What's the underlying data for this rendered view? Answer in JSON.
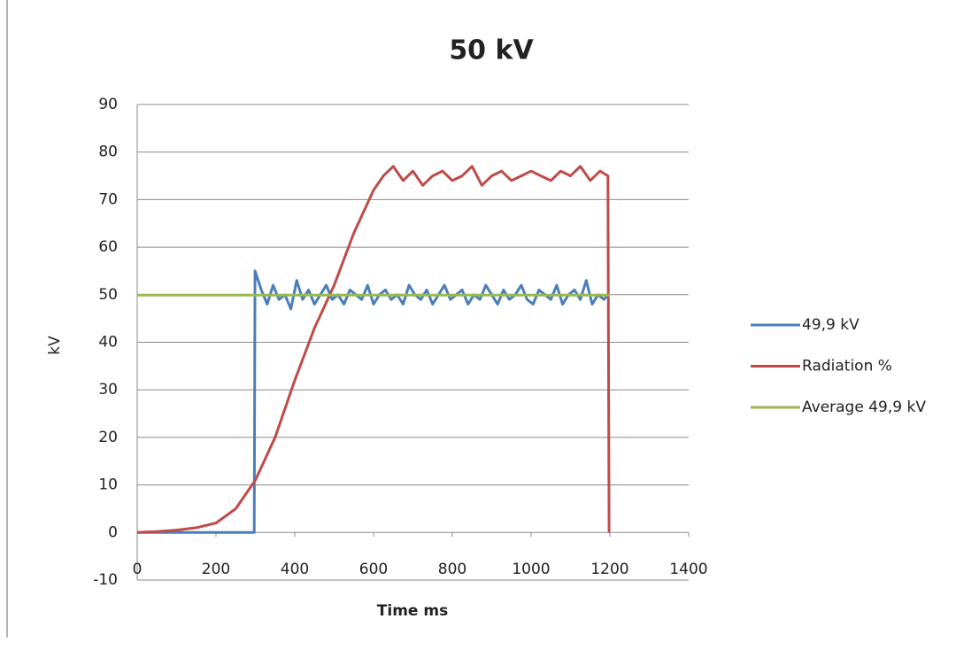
{
  "chart_data": {
    "type": "line",
    "title": "50 kV",
    "x_label": "Time ms",
    "y_label": "kV",
    "xlim": [
      0,
      1400
    ],
    "xticks": [
      0,
      200,
      400,
      600,
      800,
      1000,
      1200,
      1400
    ],
    "ylim": [
      -10,
      90
    ],
    "yticks": [
      -10,
      0,
      10,
      20,
      30,
      40,
      50,
      60,
      70,
      80,
      90
    ],
    "grid": true,
    "legend": "right",
    "series": [
      {
        "name": "49,9 kV",
        "color": "#4a7ebb",
        "x": [
          0,
          297,
          299,
          315,
          330,
          345,
          360,
          375,
          390,
          405,
          420,
          435,
          450,
          465,
          480,
          495,
          510,
          525,
          540,
          555,
          570,
          585,
          600,
          615,
          630,
          645,
          660,
          675,
          690,
          705,
          720,
          735,
          750,
          765,
          780,
          795,
          810,
          825,
          840,
          855,
          870,
          885,
          900,
          915,
          930,
          945,
          960,
          975,
          990,
          1005,
          1020,
          1035,
          1050,
          1065,
          1080,
          1095,
          1110,
          1125,
          1140,
          1155,
          1170,
          1185,
          1195
        ],
        "values": [
          0,
          0,
          55,
          51,
          48,
          52,
          49,
          50,
          47,
          53,
          49,
          51,
          48,
          50,
          52,
          49,
          50,
          48,
          51,
          50,
          49,
          52,
          48,
          50,
          51,
          49,
          50,
          48,
          52,
          50,
          49,
          51,
          48,
          50,
          52,
          49,
          50,
          51,
          48,
          50,
          49,
          52,
          50,
          48,
          51,
          49,
          50,
          52,
          49,
          48,
          51,
          50,
          49,
          52,
          48,
          50,
          51,
          49,
          53,
          48,
          50,
          49,
          50
        ]
      },
      {
        "name": "Radiation %",
        "color": "#be4b48",
        "x": [
          0,
          50,
          100,
          150,
          200,
          250,
          300,
          350,
          400,
          450,
          500,
          550,
          600,
          625,
          650,
          675,
          700,
          725,
          750,
          775,
          800,
          825,
          850,
          875,
          900,
          925,
          950,
          975,
          1000,
          1025,
          1050,
          1075,
          1100,
          1125,
          1150,
          1175,
          1195,
          1198
        ],
        "values": [
          0,
          0.2,
          0.5,
          1,
          2,
          5,
          11,
          20,
          32,
          43,
          52,
          63,
          72,
          75,
          77,
          74,
          76,
          73,
          75,
          76,
          74,
          75,
          77,
          73,
          75,
          76,
          74,
          75,
          76,
          75,
          74,
          76,
          75,
          77,
          74,
          76,
          75,
          0
        ]
      },
      {
        "name": "Average 49,9 kV",
        "color": "#98b954",
        "x": [
          0,
          1200
        ],
        "values": [
          49.9,
          49.9
        ]
      }
    ]
  }
}
